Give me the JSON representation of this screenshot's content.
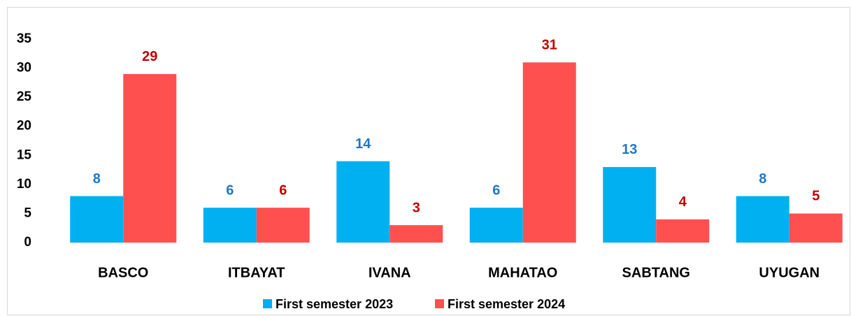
{
  "chart_data": {
    "type": "bar",
    "categories": [
      "BASCO",
      "ITBAYAT",
      "IVANA",
      "MAHATAO",
      "SABTANG",
      "UYUGAN"
    ],
    "series": [
      {
        "name": "First semester 2023",
        "color": "#00b0f0",
        "label_color": "#1f77c4",
        "values": [
          8,
          6,
          14,
          6,
          13,
          8
        ]
      },
      {
        "name": "First semester 2024",
        "color": "#ff5050",
        "label_color": "#c00000",
        "values": [
          29,
          6,
          3,
          31,
          4,
          5
        ]
      }
    ],
    "ylim": [
      0,
      35
    ],
    "yticks": [
      0,
      5,
      10,
      15,
      20,
      25,
      30,
      35
    ],
    "grid": false,
    "legend": "bottom"
  }
}
